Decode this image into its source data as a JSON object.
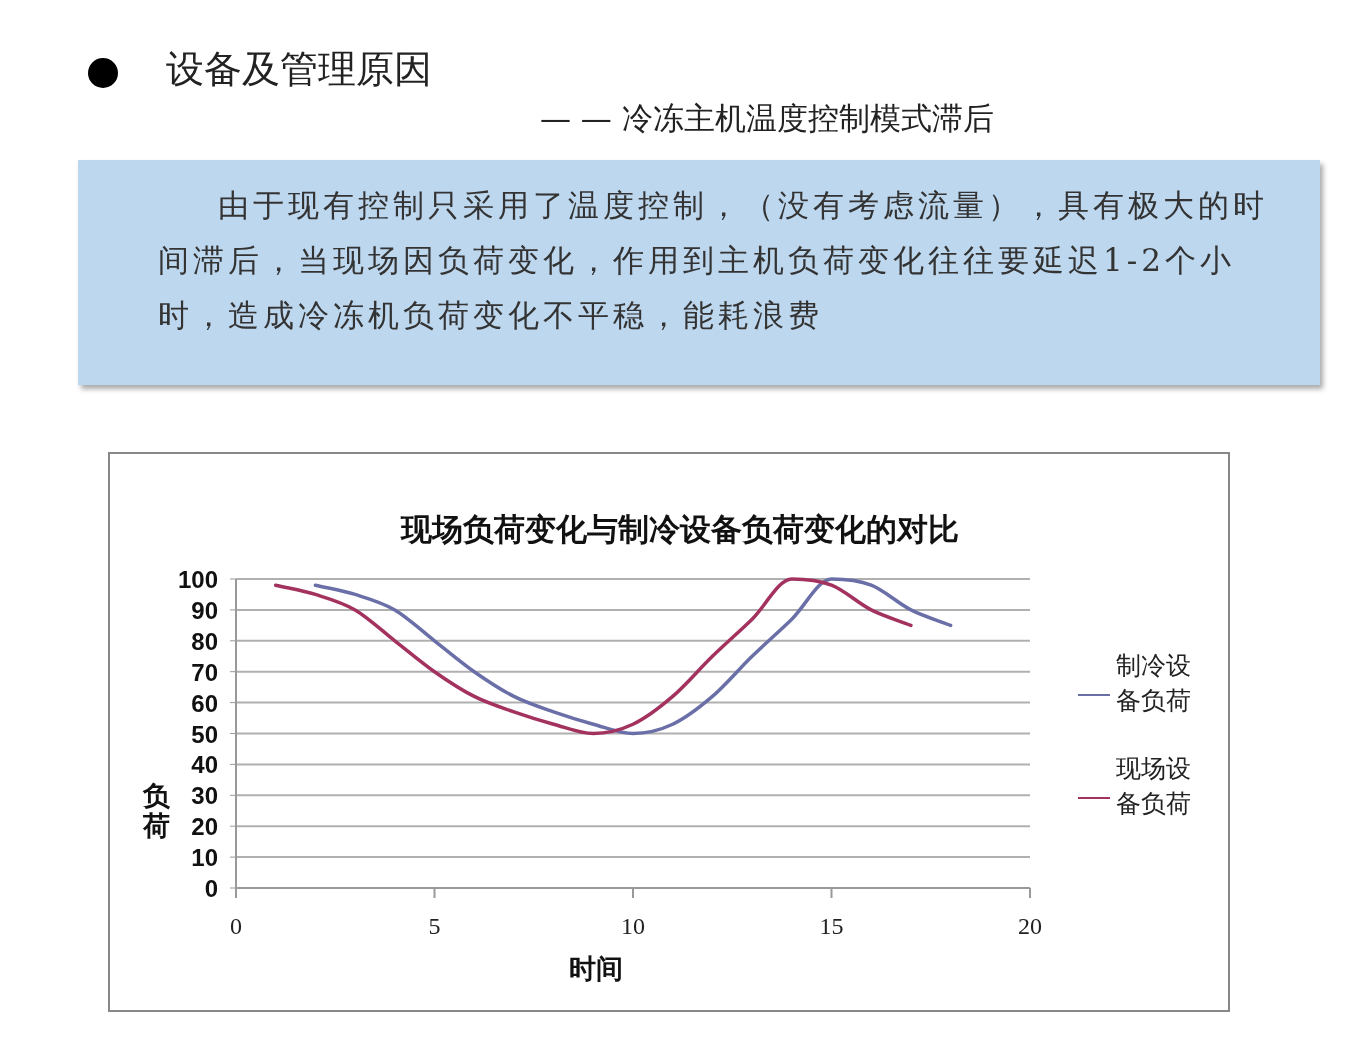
{
  "chart_data": {
    "type": "line",
    "title": "现场负荷变化与制冷设备负荷变化的对比",
    "xlabel": "时间",
    "ylabel": "负荷",
    "annotations": [
      "设备及管理原因",
      "— — 冷冻主机温度控制模式滞后",
      "由于现有控制只采用了温度控制，（没有考虑流量），具有极大的时间滞后，当现场因负荷变化，作用到主机负荷变化往往要延迟1-2个小时，造成冷冻机负荷变化不平稳，能耗浪费"
    ],
    "series": [
      {
        "name": "制冷设备负荷",
        "color": "#6b6fa8",
        "x": [
          2,
          3,
          4,
          5,
          6,
          7,
          8,
          9,
          10,
          11,
          12,
          13,
          14,
          15,
          16,
          17,
          18
        ],
        "values": [
          98,
          95,
          90,
          80,
          70,
          62,
          57,
          53,
          50,
          53,
          62,
          75,
          87,
          100,
          98,
          90,
          85
        ]
      },
      {
        "name": "现场设备负荷",
        "color": "#a3325f",
        "x": [
          1,
          2,
          3,
          4,
          5,
          6,
          7,
          8,
          9,
          10,
          11,
          12,
          13,
          14,
          15,
          16,
          17
        ],
        "values": [
          98,
          95,
          90,
          80,
          70,
          62,
          57,
          53,
          50,
          53,
          62,
          75,
          87,
          100,
          98,
          90,
          85
        ]
      }
    ],
    "xlim": [
      0,
      20
    ],
    "xticks": [
      0,
      5,
      10,
      15,
      20
    ],
    "ylim": [
      0,
      100
    ],
    "yticks": [
      0,
      10,
      20,
      30,
      40,
      50,
      60,
      70,
      80,
      90,
      100
    ],
    "grid": "y",
    "legend": "right"
  }
}
